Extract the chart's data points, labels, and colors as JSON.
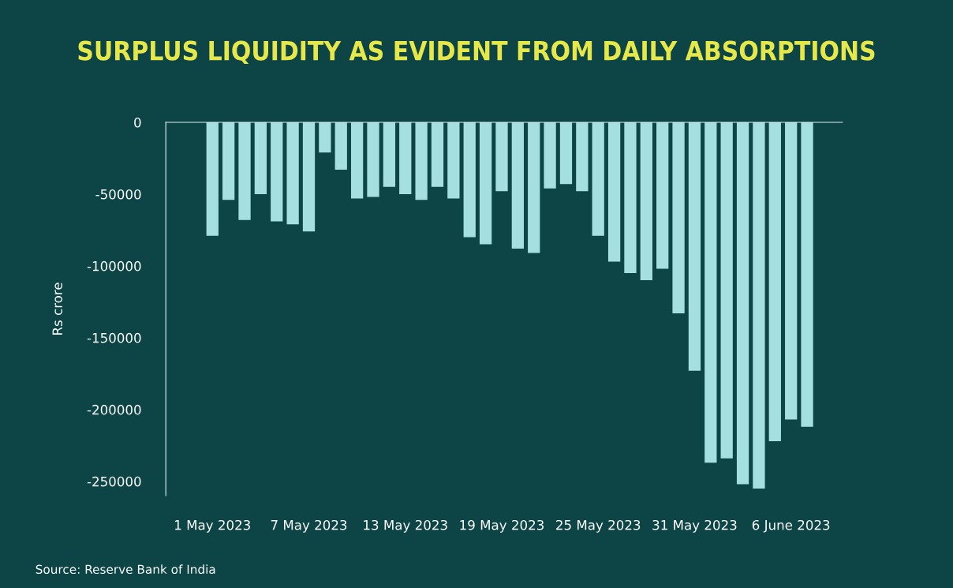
{
  "chart_data": {
    "type": "bar",
    "title": "SURPLUS LIQUIDITY AS EVIDENT FROM DAILY ABSORPTIONS",
    "ylabel": "Rs crore",
    "categories": [
      "1 May 2023",
      null,
      null,
      null,
      null,
      null,
      "7 May 2023",
      null,
      null,
      null,
      null,
      null,
      "13 May 2023",
      null,
      null,
      null,
      null,
      null,
      "19 May 2023",
      null,
      null,
      null,
      null,
      null,
      "25 May 2023",
      null,
      null,
      null,
      null,
      null,
      "31 May 2023",
      null,
      null,
      null,
      null,
      null,
      "6 June 2023",
      null
    ],
    "values": [
      -79000,
      -54000,
      -68000,
      -50000,
      -69000,
      -71000,
      -76000,
      -21000,
      -33000,
      -53000,
      -52000,
      -45000,
      -50000,
      -54000,
      -45000,
      -53000,
      -80000,
      -85000,
      -48000,
      -88000,
      -91000,
      -46000,
      -43000,
      -48000,
      -79000,
      -97000,
      -105000,
      -110000,
      -102000,
      -133000,
      -173000,
      -237000,
      -234000,
      -252000,
      -255000,
      -222000,
      -207000,
      -212000
    ],
    "color": "#a6dfe0",
    "ylim": [
      -260000,
      0
    ],
    "yticks": [
      0,
      -50000,
      -100000,
      -150000,
      -200000,
      -250000
    ],
    "grid": false,
    "legend": false,
    "annotations": [
      "Source: Reserve Bank of India"
    ]
  }
}
